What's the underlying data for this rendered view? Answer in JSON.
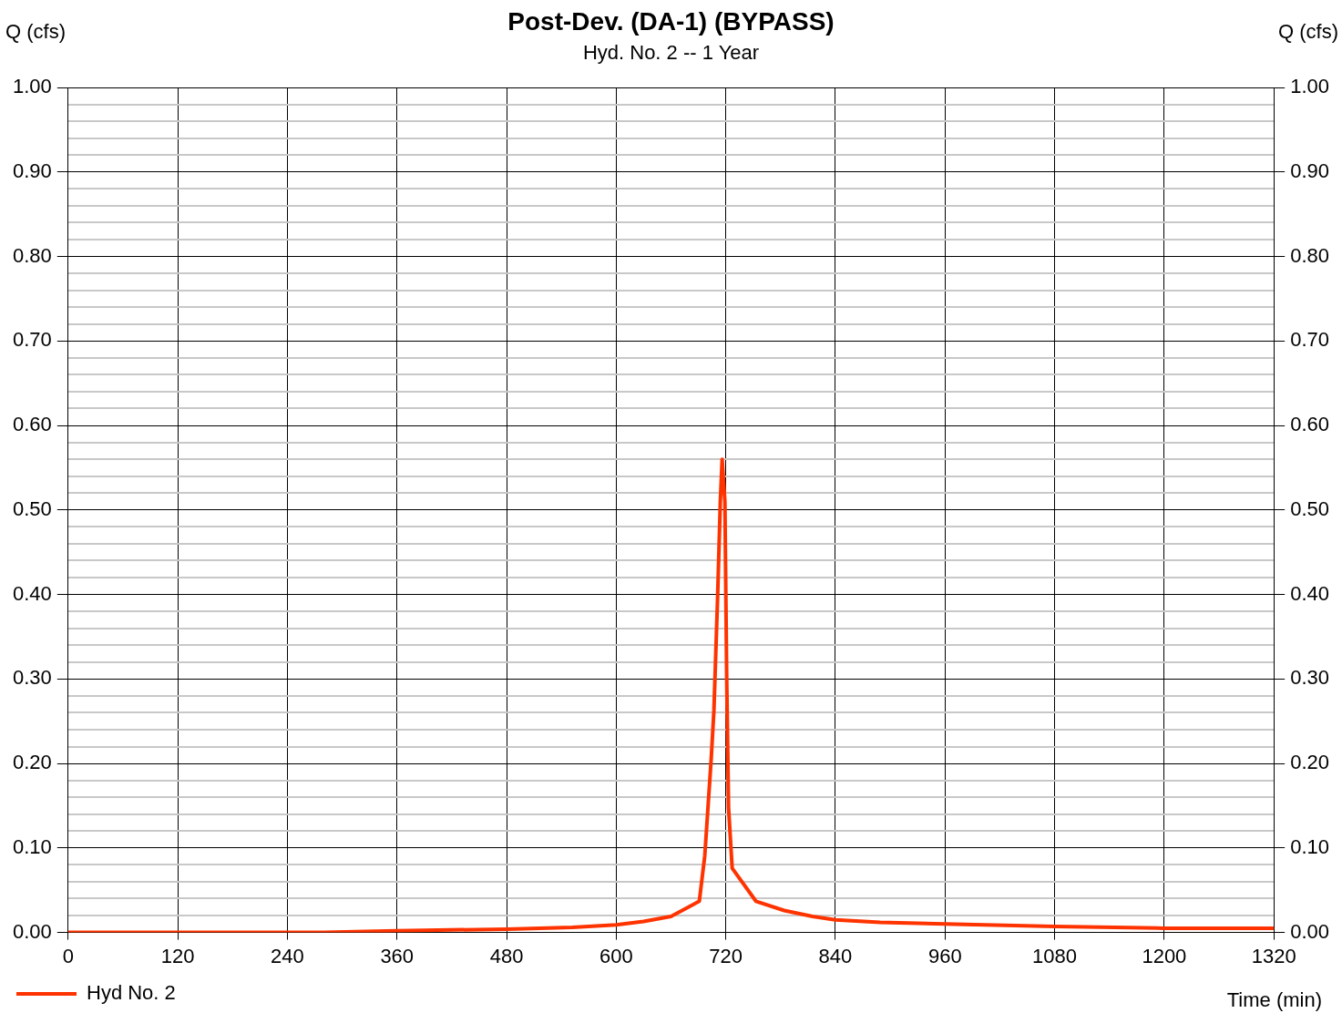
{
  "chart_data": {
    "type": "line",
    "title": "Post-Dev. (DA-1) (BYPASS)",
    "subtitle": "Hyd. No. 2 -- 1 Year",
    "xlabel": "Time (min)",
    "ylabel": "Q (cfs)",
    "y2label": "Q (cfs)",
    "xlim": [
      0,
      1320
    ],
    "xticks": [
      0,
      120,
      240,
      360,
      480,
      600,
      720,
      840,
      960,
      1080,
      1200,
      1320
    ],
    "ylim": [
      0,
      1
    ],
    "yticks": [
      {
        "value": 0,
        "label": "0.00"
      },
      {
        "value": 0.02,
        "label": null
      },
      {
        "value": 0.04,
        "label": null
      },
      {
        "value": 0.06,
        "label": null
      },
      {
        "value": 0.08,
        "label": null
      },
      {
        "value": 0.1,
        "label": "0.10"
      },
      {
        "value": 0.12,
        "label": null
      },
      {
        "value": 0.14,
        "label": null
      },
      {
        "value": 0.16,
        "label": null
      },
      {
        "value": 0.18,
        "label": null
      },
      {
        "value": 0.2,
        "label": "0.20"
      },
      {
        "value": 0.22,
        "label": null
      },
      {
        "value": 0.24,
        "label": null
      },
      {
        "value": 0.26,
        "label": null
      },
      {
        "value": 0.28,
        "label": null
      },
      {
        "value": 0.3,
        "label": "0.30"
      },
      {
        "value": 0.32,
        "label": null
      },
      {
        "value": 0.34,
        "label": null
      },
      {
        "value": 0.36,
        "label": null
      },
      {
        "value": 0.38,
        "label": null
      },
      {
        "value": 0.4,
        "label": "0.40"
      },
      {
        "value": 0.42,
        "label": null
      },
      {
        "value": 0.44,
        "label": null
      },
      {
        "value": 0.46,
        "label": null
      },
      {
        "value": 0.48,
        "label": null
      },
      {
        "value": 0.5,
        "label": "0.50"
      },
      {
        "value": 0.52,
        "label": null
      },
      {
        "value": 0.54,
        "label": null
      },
      {
        "value": 0.56,
        "label": null
      },
      {
        "value": 0.58,
        "label": null
      },
      {
        "value": 0.6,
        "label": "0.60"
      },
      {
        "value": 0.62,
        "label": null
      },
      {
        "value": 0.64,
        "label": null
      },
      {
        "value": 0.66,
        "label": null
      },
      {
        "value": 0.68,
        "label": null
      },
      {
        "value": 0.7,
        "label": "0.70"
      },
      {
        "value": 0.72,
        "label": null
      },
      {
        "value": 0.74,
        "label": null
      },
      {
        "value": 0.76,
        "label": null
      },
      {
        "value": 0.78,
        "label": null
      },
      {
        "value": 0.8,
        "label": "0.80"
      },
      {
        "value": 0.82,
        "label": null
      },
      {
        "value": 0.84,
        "label": null
      },
      {
        "value": 0.86,
        "label": null
      },
      {
        "value": 0.88,
        "label": null
      },
      {
        "value": 0.9,
        "label": "0.90"
      },
      {
        "value": 0.92,
        "label": null
      },
      {
        "value": 0.94,
        "label": null
      },
      {
        "value": 0.96,
        "label": null
      },
      {
        "value": 0.98,
        "label": null
      },
      {
        "value": 1,
        "label": "1.00"
      }
    ],
    "y2lim": [
      0,
      1
    ],
    "y2ticks": [
      {
        "value": 0,
        "label": "0.00"
      },
      {
        "value": 0.1,
        "label": "0.10"
      },
      {
        "value": 0.2,
        "label": "0.20"
      },
      {
        "value": 0.3,
        "label": "0.30"
      },
      {
        "value": 0.4,
        "label": "0.40"
      },
      {
        "value": 0.5,
        "label": "0.50"
      },
      {
        "value": 0.6,
        "label": "0.60"
      },
      {
        "value": 0.7,
        "label": "0.70"
      },
      {
        "value": 0.8,
        "label": "0.80"
      },
      {
        "value": 0.9,
        "label": "0.90"
      },
      {
        "value": 1,
        "label": "1.00"
      }
    ],
    "grid": true,
    "legend": "bottom left",
    "marker": "none",
    "line_style": "solid",
    "series": [
      {
        "name": "Hyd No. 2",
        "color": "#ff3300",
        "x": [
          0,
          120,
          240,
          280,
          360,
          480,
          552,
          600,
          630,
          660,
          691,
          697,
          704,
          707,
          711,
          714,
          716,
          719,
          721,
          723,
          727,
          753,
          784,
          815,
          840,
          889,
          960,
          1080,
          1200,
          1319
        ],
        "values": [
          0,
          0,
          0,
          0,
          0.002,
          0.004,
          0.006,
          0.009,
          0.013,
          0.019,
          0.037,
          0.091,
          0.205,
          0.263,
          0.396,
          0.51,
          0.56,
          0.51,
          0.3,
          0.148,
          0.076,
          0.037,
          0.026,
          0.019,
          0.015,
          0.012,
          0.01,
          0.007,
          0.005,
          0.005
        ]
      }
    ]
  }
}
